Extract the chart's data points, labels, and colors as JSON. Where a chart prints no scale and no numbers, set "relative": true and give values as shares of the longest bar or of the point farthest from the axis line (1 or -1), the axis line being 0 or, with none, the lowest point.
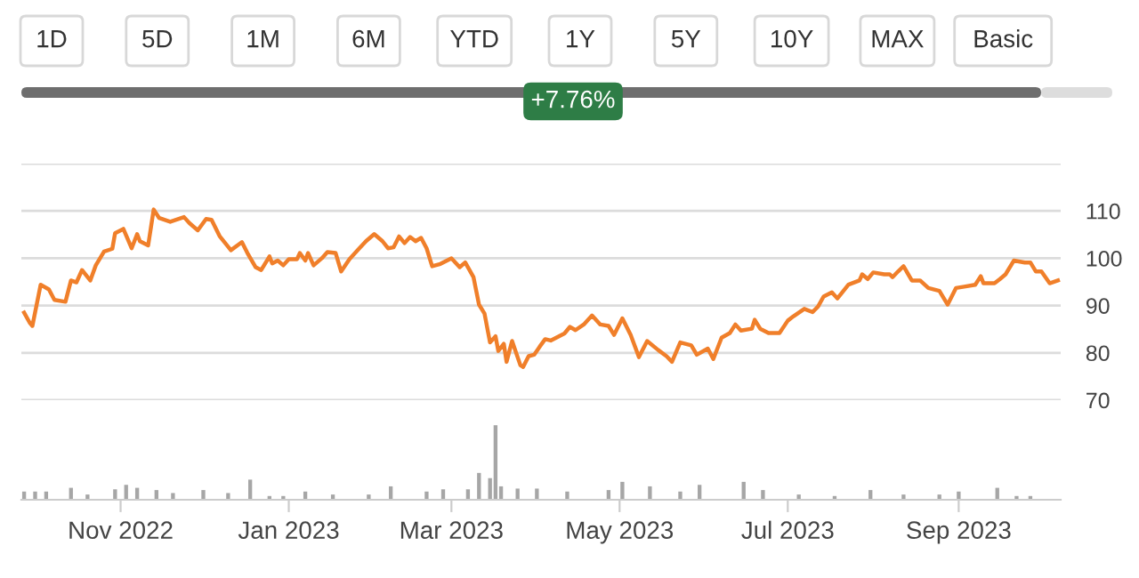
{
  "chart_data": [
    {
      "type": "other",
      "annotations": [
        "1D",
        "5D",
        "1M",
        "6M",
        "YTD",
        "1Y",
        "5Y",
        "10Y",
        "MAX",
        "Basic",
        "+7.76%"
      ]
    },
    {
      "type": "line",
      "xlim": [
        "2022-09-26",
        "2023-10-08"
      ],
      "ylim": [
        70,
        120
      ],
      "yticks": [
        70,
        80,
        90,
        100,
        110,
        {
          "value": 120,
          "label": null
        }
      ],
      "grid": "y",
      "tick_labels": "y",
      "line_style": "solid",
      "marker": "none",
      "series": [
        {
          "color": "#f07f2a",
          "x": [
            "2022-09-27",
            "2022-09-29",
            "2022-09-30",
            "2022-10-03",
            "2022-10-06",
            "2022-10-08",
            "2022-10-12",
            "2022-10-14",
            "2022-10-16",
            "2022-10-18",
            "2022-10-21",
            "2022-10-23",
            "2022-10-26",
            "2022-10-29",
            "2022-10-30",
            "2022-11-02",
            "2022-11-05",
            "2022-11-07",
            "2022-11-08",
            "2022-11-11",
            "2022-11-13",
            "2022-11-15",
            "2022-11-19",
            "2022-11-24",
            "2022-11-26",
            "2022-11-29",
            "2022-12-02",
            "2022-12-04",
            "2022-12-07",
            "2022-12-11",
            "2022-12-15",
            "2022-12-17",
            "2022-12-20",
            "2022-12-22",
            "2022-12-25",
            "2022-12-26",
            "2022-12-28",
            "2022-12-30",
            "2023-01-01",
            "2023-01-04",
            "2023-01-05",
            "2023-01-07",
            "2023-01-08",
            "2023-01-10",
            "2023-01-13",
            "2023-01-15",
            "2023-01-18",
            "2023-01-20",
            "2023-01-23",
            "2023-01-26",
            "2023-01-29",
            "2023-02-01",
            "2023-02-04",
            "2023-02-06",
            "2023-02-08",
            "2023-02-10",
            "2023-02-12",
            "2023-02-14",
            "2023-02-16",
            "2023-02-18",
            "2023-02-20",
            "2023-02-22",
            "2023-02-25",
            "2023-03-01",
            "2023-03-04",
            "2023-03-06",
            "2023-03-09",
            "2023-03-11",
            "2023-03-13",
            "2023-03-15",
            "2023-03-17",
            "2023-03-18",
            "2023-03-20",
            "2023-03-21",
            "2023-03-23",
            "2023-03-26",
            "2023-03-27",
            "2023-03-29",
            "2023-03-31",
            "2023-04-02",
            "2023-04-04",
            "2023-04-06",
            "2023-04-11",
            "2023-04-13",
            "2023-04-15",
            "2023-04-18",
            "2023-04-21",
            "2023-04-24",
            "2023-04-27",
            "2023-04-29",
            "2023-05-02",
            "2023-05-05",
            "2023-05-08",
            "2023-05-11",
            "2023-05-15",
            "2023-05-18",
            "2023-05-20",
            "2023-05-23",
            "2023-05-27",
            "2023-05-29",
            "2023-06-02",
            "2023-06-04",
            "2023-06-07",
            "2023-06-10",
            "2023-06-12",
            "2023-06-14",
            "2023-06-18",
            "2023-06-19",
            "2023-06-21",
            "2023-06-24",
            "2023-06-28",
            "2023-07-01",
            "2023-07-03",
            "2023-07-07",
            "2023-07-10",
            "2023-07-12",
            "2023-07-14",
            "2023-07-17",
            "2023-07-19",
            "2023-07-23",
            "2023-07-27",
            "2023-07-28",
            "2023-07-30",
            "2023-08-01",
            "2023-08-05",
            "2023-08-07",
            "2023-08-08",
            "2023-08-10",
            "2023-08-12",
            "2023-08-15",
            "2023-08-18",
            "2023-08-21",
            "2023-08-25",
            "2023-08-28",
            "2023-08-31",
            "2023-09-03",
            "2023-09-07",
            "2023-09-09",
            "2023-09-10",
            "2023-09-14",
            "2023-09-16",
            "2023-09-18",
            "2023-09-21",
            "2023-09-25",
            "2023-09-27",
            "2023-09-29",
            "2023-10-01",
            "2023-10-04",
            "2023-10-07"
          ],
          "values": [
            88.5,
            86.4,
            85.7,
            94.4,
            93.4,
            91.2,
            90.8,
            95.3,
            94.9,
            97.5,
            95.3,
            98.5,
            101.4,
            102.0,
            105.3,
            106.2,
            102.1,
            105.1,
            103.6,
            102.7,
            110.3,
            108.5,
            107.7,
            108.7,
            107.4,
            105.9,
            108.3,
            108.1,
            104.6,
            101.7,
            103.4,
            101.1,
            98.1,
            97.5,
            100.4,
            98.9,
            99.5,
            98.5,
            99.8,
            99.8,
            101.1,
            99.5,
            101.1,
            98.5,
            100.0,
            101.3,
            101.1,
            97.2,
            99.8,
            101.7,
            103.6,
            105.1,
            103.6,
            102.1,
            102.3,
            104.6,
            103.2,
            104.5,
            103.6,
            104.3,
            102.1,
            98.3,
            98.8,
            100.0,
            98.1,
            99.1,
            96.0,
            90.2,
            88.3,
            82.2,
            83.5,
            80.4,
            81.9,
            78.1,
            82.5,
            77.4,
            77.0,
            79.3,
            79.6,
            81.3,
            82.9,
            82.6,
            84.1,
            85.5,
            84.8,
            86.0,
            87.9,
            86.0,
            85.7,
            83.8,
            87.3,
            83.8,
            79.1,
            82.5,
            80.6,
            79.3,
            78.1,
            82.2,
            81.6,
            79.6,
            80.9,
            78.7,
            83.2,
            84.2,
            86.0,
            84.7,
            85.1,
            87.0,
            85.1,
            84.2,
            84.2,
            86.8,
            87.7,
            89.3,
            88.6,
            89.8,
            91.9,
            92.8,
            91.5,
            94.4,
            95.3,
            96.6,
            95.6,
            97.0,
            96.6,
            96.6,
            96.0,
            97.2,
            98.3,
            95.3,
            95.3,
            93.7,
            93.1,
            90.2,
            93.7,
            94.0,
            94.4,
            96.2,
            94.7,
            94.7,
            95.6,
            96.6,
            99.5,
            99.1,
            99.1,
            97.2,
            97.2,
            94.7,
            95.3
          ]
        }
      ]
    },
    {
      "type": "bar",
      "relative": true,
      "color": "#a6a6a6",
      "tick_labels": "x",
      "xlim": [
        "2022-09-26",
        "2023-10-08"
      ],
      "xticks": [
        {
          "value": "2022-11-01",
          "label": "Nov 2022"
        },
        {
          "value": "2023-01-01",
          "label": "Jan 2023"
        },
        {
          "value": "2023-03-01",
          "label": "Mar 2023"
        },
        {
          "value": "2023-05-01",
          "label": "May 2023"
        },
        {
          "value": "2023-07-01",
          "label": "Jul 2023"
        },
        {
          "value": "2023-09-01",
          "label": "Sep 2023"
        }
      ],
      "x": [
        "2022-09-27",
        "2022-10-01",
        "2022-10-05",
        "2022-10-14",
        "2022-10-20",
        "2022-10-30",
        "2022-11-03",
        "2022-11-07",
        "2022-11-14",
        "2022-11-20",
        "2022-12-01",
        "2022-12-10",
        "2022-12-18",
        "2022-12-25",
        "2022-12-30",
        "2023-01-07",
        "2023-01-17",
        "2023-01-30",
        "2023-02-07",
        "2023-02-20",
        "2023-02-26",
        "2023-03-07",
        "2023-03-11",
        "2023-03-15",
        "2023-03-17",
        "2023-03-19",
        "2023-03-25",
        "2023-04-01",
        "2023-04-12",
        "2023-04-27",
        "2023-05-02",
        "2023-05-12",
        "2023-05-23",
        "2023-05-30",
        "2023-06-15",
        "2023-06-22",
        "2023-07-05",
        "2023-07-18",
        "2023-07-31",
        "2023-08-12",
        "2023-08-25",
        "2023-09-01",
        "2023-09-15",
        "2023-09-22",
        "2023-09-27"
      ],
      "values": [
        0.11,
        0.11,
        0.11,
        0.16,
        0.07,
        0.14,
        0.2,
        0.16,
        0.13,
        0.09,
        0.13,
        0.09,
        0.27,
        0.05,
        0.05,
        0.11,
        0.07,
        0.07,
        0.18,
        0.11,
        0.14,
        0.14,
        0.36,
        0.29,
        1,
        0.18,
        0.15,
        0.15,
        0.11,
        0.13,
        0.24,
        0.18,
        0.11,
        0.2,
        0.24,
        0.13,
        0.07,
        0.05,
        0.13,
        0.07,
        0.07,
        0.11,
        0.16,
        0.05,
        0.05
      ]
    }
  ]
}
